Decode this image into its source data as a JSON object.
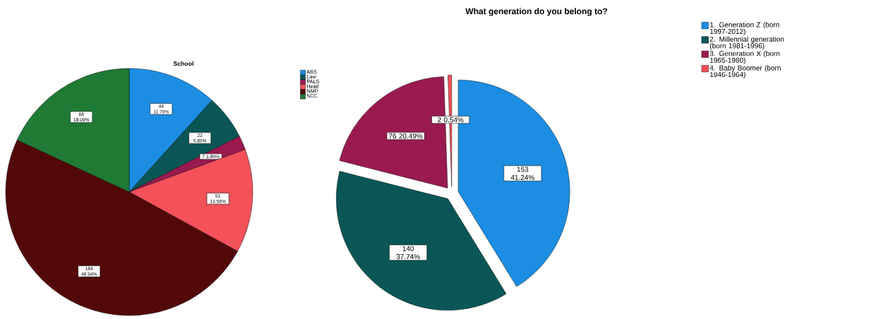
{
  "chart_data": [
    {
      "type": "pie",
      "title": "School",
      "categories": [
        "ABS",
        "Law",
        "PALS",
        "Heatl",
        "NMP",
        "SCC"
      ],
      "values": [
        44,
        22,
        7,
        51,
        184,
        68
      ],
      "colors": [
        "#1b8de3",
        "#0a5656",
        "#9a1a50",
        "#f4515a",
        "#530808",
        "#1f7a34"
      ],
      "value_labels": [
        "44 11.70%",
        "22 5.85%",
        "7 1.86%",
        "51 13.56%",
        "184 48.94%",
        "68 18.09%"
      ],
      "legend": "top right"
    },
    {
      "type": "pie",
      "title": "What generation do you belong to?",
      "categories": [
        "1. Generation Z (born 1997-2012)",
        "2. Millennial generation (born 1981-1996)",
        "3. Generation X (born 1965-1980)",
        "4. Baby Boomer (born 1946-1964)"
      ],
      "values": [
        153,
        140,
        76,
        2
      ],
      "colors": [
        "#1b8de3",
        "#0a5656",
        "#9a1a50",
        "#f4515a"
      ],
      "value_labels": [
        "153 41.24%",
        "140 37.74%",
        "76 20.49%",
        "2 0.54%"
      ],
      "legend": "top right"
    }
  ]
}
